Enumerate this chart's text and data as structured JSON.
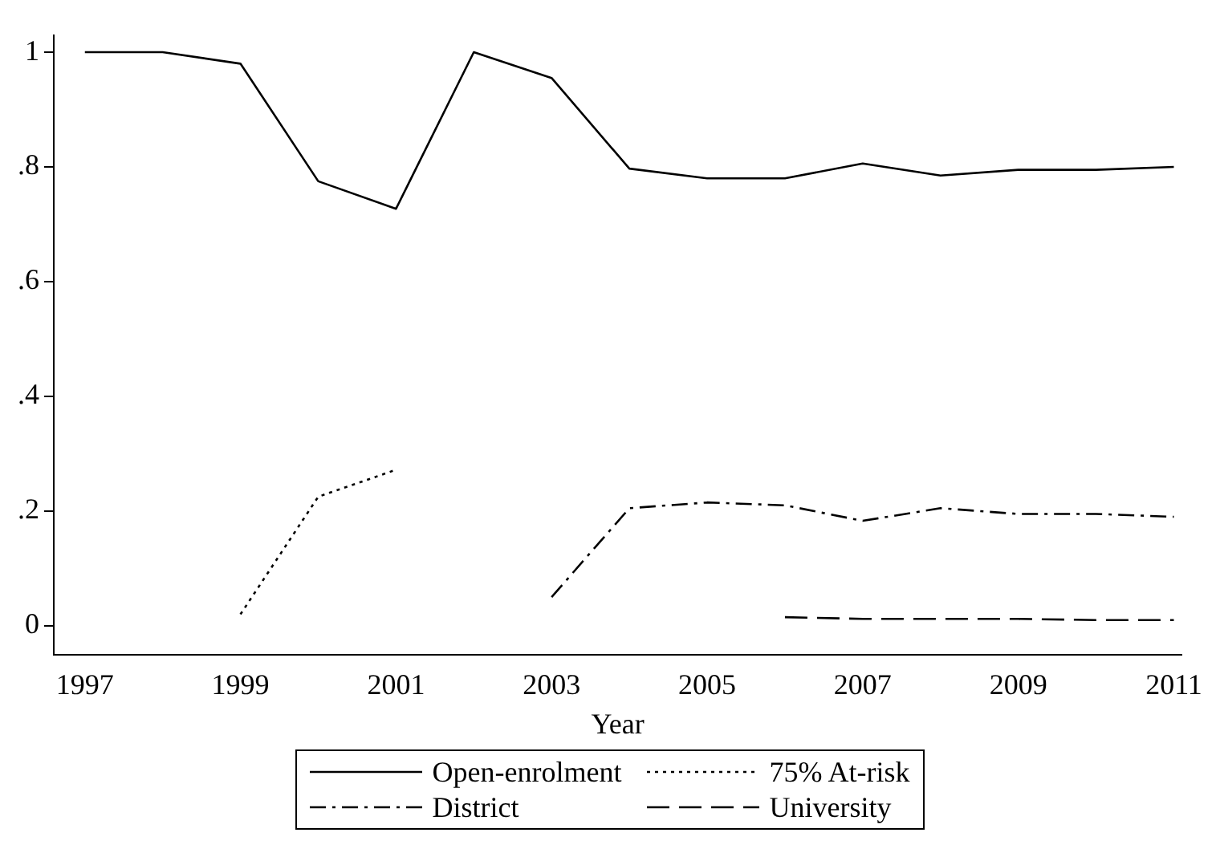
{
  "chart_data": {
    "type": "line",
    "xlabel": "Year",
    "x": [
      1997,
      1998,
      1999,
      2000,
      2001,
      2002,
      2003,
      2004,
      2005,
      2006,
      2007,
      2008,
      2009,
      2010,
      2011
    ],
    "series": [
      {
        "name": "Open-enrolment",
        "color": "#000000",
        "line_style": "solid",
        "values": [
          1.0,
          1.0,
          0.98,
          0.775,
          0.727,
          1.0,
          0.955,
          0.797,
          0.78,
          0.78,
          0.806,
          0.785,
          0.795,
          0.795,
          0.8
        ]
      },
      {
        "name": "75% At-risk",
        "color": "#000000",
        "line_style": "dotted",
        "values": [
          null,
          null,
          0.02,
          0.225,
          0.272,
          null,
          null,
          null,
          null,
          null,
          null,
          null,
          null,
          null,
          null
        ]
      },
      {
        "name": "District",
        "color": "#000000",
        "line_style": "dashdot",
        "values": [
          null,
          null,
          null,
          null,
          null,
          null,
          0.05,
          0.205,
          0.215,
          0.21,
          0.183,
          0.205,
          0.195,
          0.195,
          0.19
        ]
      },
      {
        "name": "University",
        "color": "#000000",
        "line_style": "dashed",
        "values": [
          null,
          null,
          null,
          null,
          null,
          null,
          null,
          null,
          null,
          0.015,
          0.012,
          0.012,
          0.012,
          0.01,
          0.01
        ]
      }
    ],
    "xlim": [
      1996.6,
      2011.1
    ],
    "xticks": [
      1997,
      1999,
      2001,
      2003,
      2005,
      2007,
      2009,
      2011
    ],
    "ylim": [
      -0.05,
      1.03
    ],
    "yticks": [
      0,
      {
        "value": 0.2,
        "label": ".2"
      },
      {
        "value": 0.4,
        "label": ".4"
      },
      {
        "value": 0.6,
        "label": ".6"
      },
      {
        "value": 0.8,
        "label": ".8"
      },
      1
    ],
    "grid": false,
    "legend": "bottom",
    "marker": "none"
  }
}
